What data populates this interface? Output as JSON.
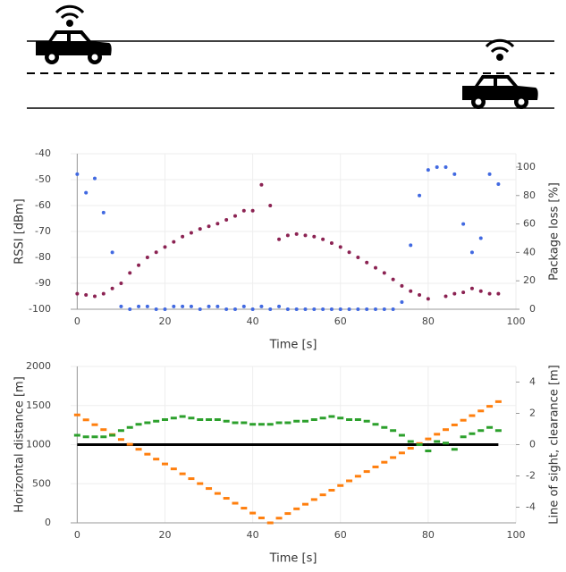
{
  "chart_data": [
    {
      "type": "scatter",
      "x_label": "Time [s]",
      "y_label": "RSSI [dBm]",
      "y2_label": "Package loss [%]",
      "xlim": [
        -1.5,
        100
      ],
      "xticks": [
        0,
        20,
        40,
        60,
        80,
        100
      ],
      "ylim": [
        -100,
        -40
      ],
      "yticks": [
        -100,
        -90,
        -80,
        -70,
        -60,
        -50,
        -40
      ],
      "y2lim": [
        0,
        109.4
      ],
      "y2ticks": [
        0,
        20,
        40,
        60,
        80,
        100
      ],
      "grid": true,
      "x": [
        0,
        2,
        4,
        6,
        8,
        10,
        12,
        14,
        16,
        18,
        20,
        22,
        24,
        26,
        28,
        30,
        32,
        34,
        36,
        38,
        40,
        42,
        44,
        46,
        48,
        50,
        52,
        54,
        56,
        58,
        60,
        62,
        64,
        66,
        68,
        70,
        72,
        74,
        76,
        78,
        80,
        82,
        84,
        86,
        88,
        90,
        92,
        94,
        96
      ],
      "series": [
        {
          "color": "#8b2252",
          "marker": "dot",
          "values": [
            -94,
            -94.5,
            -95,
            -94,
            -92,
            -90,
            -86,
            -83,
            -80,
            -78,
            -76,
            -74,
            -72,
            -70.5,
            -69,
            -68,
            -67,
            -65.5,
            -64,
            -62,
            -62,
            -52,
            -60,
            -73,
            -71.5,
            -71,
            -71.5,
            -72,
            -73,
            -74.5,
            -76,
            -78,
            -80,
            -82,
            -84,
            -86,
            -88.5,
            -91,
            -93,
            -94.5,
            -96,
            null,
            -95,
            -94,
            -93.5,
            -92,
            -93,
            -94,
            -94
          ]
        },
        {
          "color": "#4169e1",
          "marker": "dot",
          "axis": "y2",
          "values": [
            95,
            82,
            92,
            68,
            40,
            2,
            0,
            2,
            2,
            0,
            0,
            2,
            2,
            2,
            0,
            2,
            2,
            0,
            0,
            2,
            0,
            2,
            0,
            2,
            0,
            0,
            0,
            0,
            0,
            0,
            0,
            0,
            0,
            0,
            0,
            0,
            0,
            5,
            45,
            80,
            98,
            100,
            100,
            95,
            60,
            40,
            50,
            95,
            88
          ]
        }
      ]
    },
    {
      "type": "scatter",
      "x_label": "Time [s]",
      "y_label": "Horizontal distance [m]",
      "y2_label": "Line of sight, clearance [m]",
      "xlim": [
        -1.5,
        100
      ],
      "xticks": [
        0,
        20,
        40,
        60,
        80,
        100
      ],
      "ylim": [
        0,
        2000
      ],
      "yticks": [
        0,
        500,
        1000,
        1500,
        2000
      ],
      "y2lim": [
        -5,
        5
      ],
      "y2ticks": [
        -4,
        -2,
        0,
        2,
        4
      ],
      "grid": true,
      "x": [
        0,
        2,
        4,
        6,
        8,
        10,
        12,
        14,
        16,
        18,
        20,
        22,
        24,
        26,
        28,
        30,
        32,
        34,
        36,
        38,
        40,
        42,
        44,
        46,
        48,
        50,
        52,
        54,
        56,
        58,
        60,
        62,
        64,
        66,
        68,
        70,
        72,
        74,
        76,
        78,
        80,
        82,
        84,
        86,
        88,
        90,
        92,
        94,
        96
      ],
      "series": [
        {
          "color": "#000000",
          "marker": "line",
          "axis": "y2",
          "values": [
            0,
            0,
            0,
            0,
            0,
            0,
            0,
            0,
            0,
            0,
            0,
            0,
            0,
            0,
            0,
            0,
            0,
            0,
            0,
            0,
            0,
            0,
            0,
            0,
            0,
            0,
            0,
            0,
            0,
            0,
            0,
            0,
            0,
            0,
            0,
            0,
            0,
            0,
            0,
            0,
            0,
            0,
            0,
            0,
            0,
            0,
            0,
            0,
            0
          ]
        },
        {
          "color": "#ff7f0e",
          "marker": "dash",
          "values": [
            1380,
            1317,
            1255,
            1192,
            1129,
            1066,
            1004,
            941,
            878,
            815,
            753,
            690,
            627,
            565,
            502,
            439,
            376,
            314,
            251,
            188,
            125,
            63,
            0,
            60,
            119,
            179,
            238,
            298,
            358,
            417,
            477,
            537,
            596,
            656,
            715,
            775,
            835,
            894,
            954,
            1014,
            1073,
            1133,
            1192,
            1252,
            1312,
            1371,
            1431,
            1490,
            1550
          ]
        },
        {
          "color": "#2ca02c",
          "marker": "dash",
          "axis": "y2",
          "values": [
            0.6,
            0.5,
            0.5,
            0.5,
            0.6,
            0.9,
            1.1,
            1.3,
            1.4,
            1.5,
            1.6,
            1.7,
            1.8,
            1.7,
            1.6,
            1.6,
            1.6,
            1.5,
            1.4,
            1.4,
            1.3,
            1.3,
            1.3,
            1.4,
            1.4,
            1.5,
            1.5,
            1.6,
            1.7,
            1.8,
            1.7,
            1.6,
            1.6,
            1.5,
            1.3,
            1.1,
            0.9,
            0.6,
            0.2,
            0,
            -0.4,
            0.2,
            0.1,
            -0.3,
            0.5,
            0.7,
            0.9,
            1.1,
            0.9
          ]
        }
      ]
    }
  ]
}
